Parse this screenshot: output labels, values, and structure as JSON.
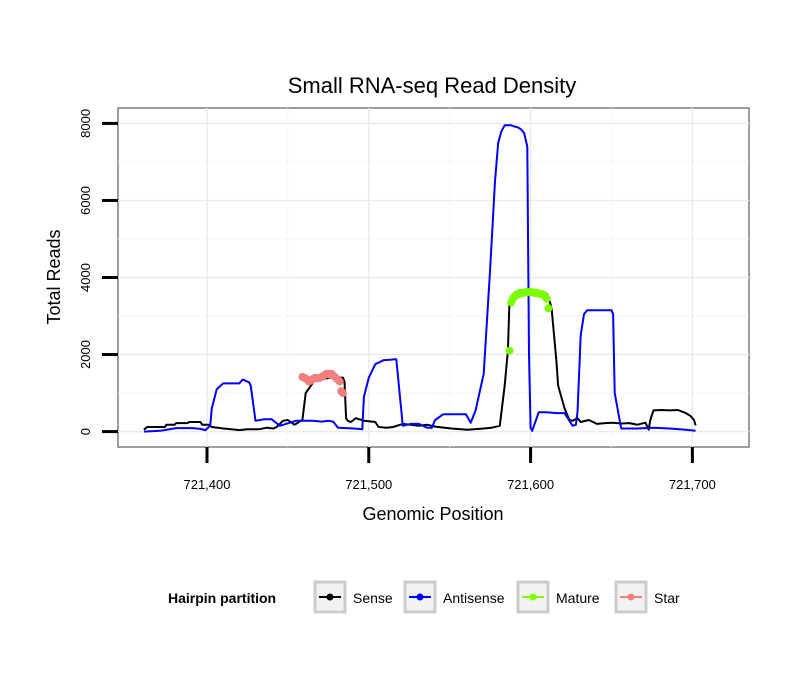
{
  "chart_data": {
    "type": "line",
    "title": "Small RNA-seq Read Density",
    "xlabel": "Genomic Position",
    "ylabel": "Total Reads",
    "xlim": [
      721345,
      721735
    ],
    "ylim": [
      -400,
      8400
    ],
    "x_ticks": [
      721400,
      721500,
      721600,
      721700
    ],
    "x_tick_labels": [
      "721,400",
      "721,500",
      "721,600",
      "721,700"
    ],
    "y_ticks": [
      0,
      2000,
      4000,
      6000,
      8000
    ],
    "y_tick_labels": [
      "0",
      "2000",
      "4000",
      "6000",
      "8000"
    ],
    "grid": true,
    "legend": {
      "title": "Hairpin partition",
      "placement": "bottom",
      "entries": [
        "Sense",
        "Antisense",
        "Mature",
        "Star"
      ]
    },
    "series": [
      {
        "name": "Sense",
        "color": "#000000",
        "style": "line",
        "x": [
          721361,
          721363,
          721374,
          721375,
          721380,
          721381,
          721388,
          721389,
          721396,
          721397,
          721401,
          721403,
          721410,
          721415,
          721420,
          721425,
          721432,
          721437,
          721441,
          721443,
          721447,
          721450,
          721454,
          721455,
          721458,
          721459,
          721461,
          721466,
          721470,
          721476,
          721480,
          721484,
          721485,
          721486,
          721487,
          721489,
          721492,
          721494,
          721496,
          721497,
          721500,
          721504,
          721506,
          721511,
          721515,
          721521,
          721531,
          721536,
          721541,
          721551,
          721561,
          721571,
          721576,
          721581,
          721584,
          721586,
          721587,
          721589,
          721590,
          721593,
          721598,
          721603,
          721608,
          721610,
          721611,
          721613,
          721616,
          721617,
          721619,
          721621,
          721624,
          721626,
          721629,
          721631,
          721636,
          721641,
          721646,
          721651,
          721656,
          721661,
          721666,
          721671,
          721673,
          721674,
          721676,
          721681,
          721686,
          721691,
          721696,
          721699,
          721701,
          721702
        ],
        "y": [
          50,
          120,
          120,
          180,
          180,
          220,
          220,
          250,
          250,
          180,
          180,
          120,
          80,
          60,
          40,
          60,
          60,
          100,
          80,
          120,
          280,
          300,
          180,
          200,
          280,
          300,
          1000,
          1300,
          1350,
          1400,
          1420,
          1400,
          1300,
          350,
          280,
          250,
          350,
          320,
          300,
          280,
          270,
          250,
          120,
          100,
          120,
          200,
          150,
          180,
          130,
          80,
          50,
          80,
          100,
          150,
          1200,
          2100,
          3400,
          3500,
          3580,
          3600,
          3620,
          3620,
          3600,
          3580,
          3500,
          3200,
          1800,
          1200,
          900,
          600,
          300,
          280,
          350,
          250,
          300,
          200,
          220,
          230,
          210,
          220,
          180,
          230,
          50,
          300,
          550,
          560,
          550,
          560,
          480,
          400,
          300,
          160
        ]
      },
      {
        "name": "Antisense",
        "color": "#0000ff",
        "style": "line",
        "x": [
          721361,
          721371,
          721381,
          721391,
          721396,
          721399,
          721402,
          721403,
          721406,
          721410,
          721415,
          721420,
          721422,
          721426,
          721427,
          721430,
          721435,
          721440,
          721445,
          721455,
          721465,
          721471,
          721475,
          721478,
          721481,
          721491,
          721496,
          721497,
          721500,
          721504,
          721509,
          721514,
          721516,
          721517,
          721521,
          721526,
          721531,
          721536,
          721539,
          721541,
          721546,
          721551,
          721556,
          721560,
          721563,
          721566,
          721571,
          721575,
          721578,
          721580,
          721582,
          721584,
          721586,
          721588,
          721590,
          721592,
          721594,
          721596,
          721598,
          721599,
          721600,
          721601,
          721605,
          721610,
          721616,
          721621,
          721626,
          721628,
          721629,
          721631,
          721633,
          721635,
          721641,
          721646,
          721650,
          721651,
          721652,
          721656,
          721666,
          721676,
          721686,
          721696,
          721702
        ],
        "y": [
          0,
          20,
          90,
          90,
          70,
          40,
          150,
          600,
          1100,
          1250,
          1250,
          1250,
          1350,
          1280,
          1200,
          280,
          320,
          320,
          150,
          280,
          280,
          260,
          280,
          260,
          100,
          80,
          60,
          900,
          1400,
          1750,
          1850,
          1870,
          1880,
          1880,
          150,
          200,
          200,
          100,
          100,
          300,
          450,
          450,
          450,
          450,
          230,
          550,
          1500,
          4200,
          6500,
          7500,
          7800,
          7950,
          7950,
          7950,
          7920,
          7900,
          7850,
          7750,
          7400,
          2000,
          100,
          20,
          500,
          500,
          480,
          480,
          150,
          180,
          500,
          2500,
          3050,
          3150,
          3150,
          3150,
          3150,
          3050,
          1000,
          80,
          80,
          100,
          80,
          50,
          20
        ]
      },
      {
        "name": "Mature",
        "color": "#7cfc00",
        "style": "points",
        "x": [
          721587,
          721588,
          721589,
          721590,
          721591,
          721592,
          721593,
          721594,
          721595,
          721596,
          721597,
          721598,
          721599,
          721600,
          721601,
          721602,
          721603,
          721604,
          721605,
          721606,
          721607,
          721608,
          721609,
          721610,
          721611
        ],
        "y": [
          2100,
          3350,
          3450,
          3500,
          3550,
          3550,
          3600,
          3600,
          3600,
          3600,
          3620,
          3620,
          3620,
          3620,
          3620,
          3600,
          3600,
          3600,
          3580,
          3580,
          3560,
          3550,
          3500,
          3450,
          3200
        ]
      },
      {
        "name": "Star",
        "color": "#f08080",
        "style": "points",
        "x": [
          721459,
          721460,
          721461,
          721462,
          721463,
          721464,
          721465,
          721466,
          721467,
          721468,
          721469,
          721470,
          721471,
          721472,
          721473,
          721474,
          721475,
          721476,
          721477,
          721478,
          721479,
          721480,
          721481,
          721482,
          721483,
          721484
        ],
        "y": [
          1420,
          1400,
          1380,
          1350,
          1300,
          1320,
          1350,
          1380,
          1400,
          1380,
          1390,
          1400,
          1420,
          1450,
          1480,
          1500,
          1500,
          1480,
          1500,
          1460,
          1420,
          1380,
          1350,
          1300,
          1050,
          1000
        ]
      }
    ]
  }
}
